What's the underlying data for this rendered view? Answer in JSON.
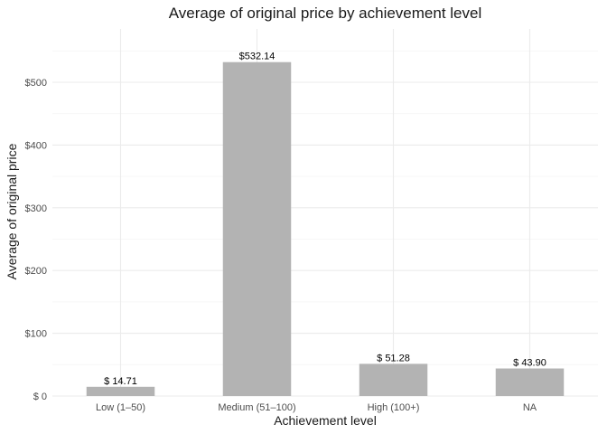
{
  "chart_data": {
    "type": "bar",
    "title": "Average of original price by achievement level",
    "xlabel": "Achievement level",
    "ylabel": "Average of original price",
    "categories": [
      "Low (1–50)",
      "Medium (51–100)",
      "High (100+)",
      "NA"
    ],
    "values": [
      14.71,
      532.14,
      51.28,
      43.9
    ],
    "data_labels": [
      "$ 14.71",
      "$532.14",
      "$ 51.28",
      "$ 43.90"
    ],
    "y_ticks": [
      0,
      100,
      200,
      300,
      400,
      500
    ],
    "y_tick_labels": [
      "$  0",
      "$100",
      "$200",
      "$300",
      "$400",
      "$500"
    ],
    "ylim": [
      0,
      585
    ],
    "grid": true,
    "legend": "none",
    "colors": {
      "bar": "#b3b3b3",
      "grid_major": "#ebebeb",
      "grid_minor": "#f5f5f5"
    }
  }
}
